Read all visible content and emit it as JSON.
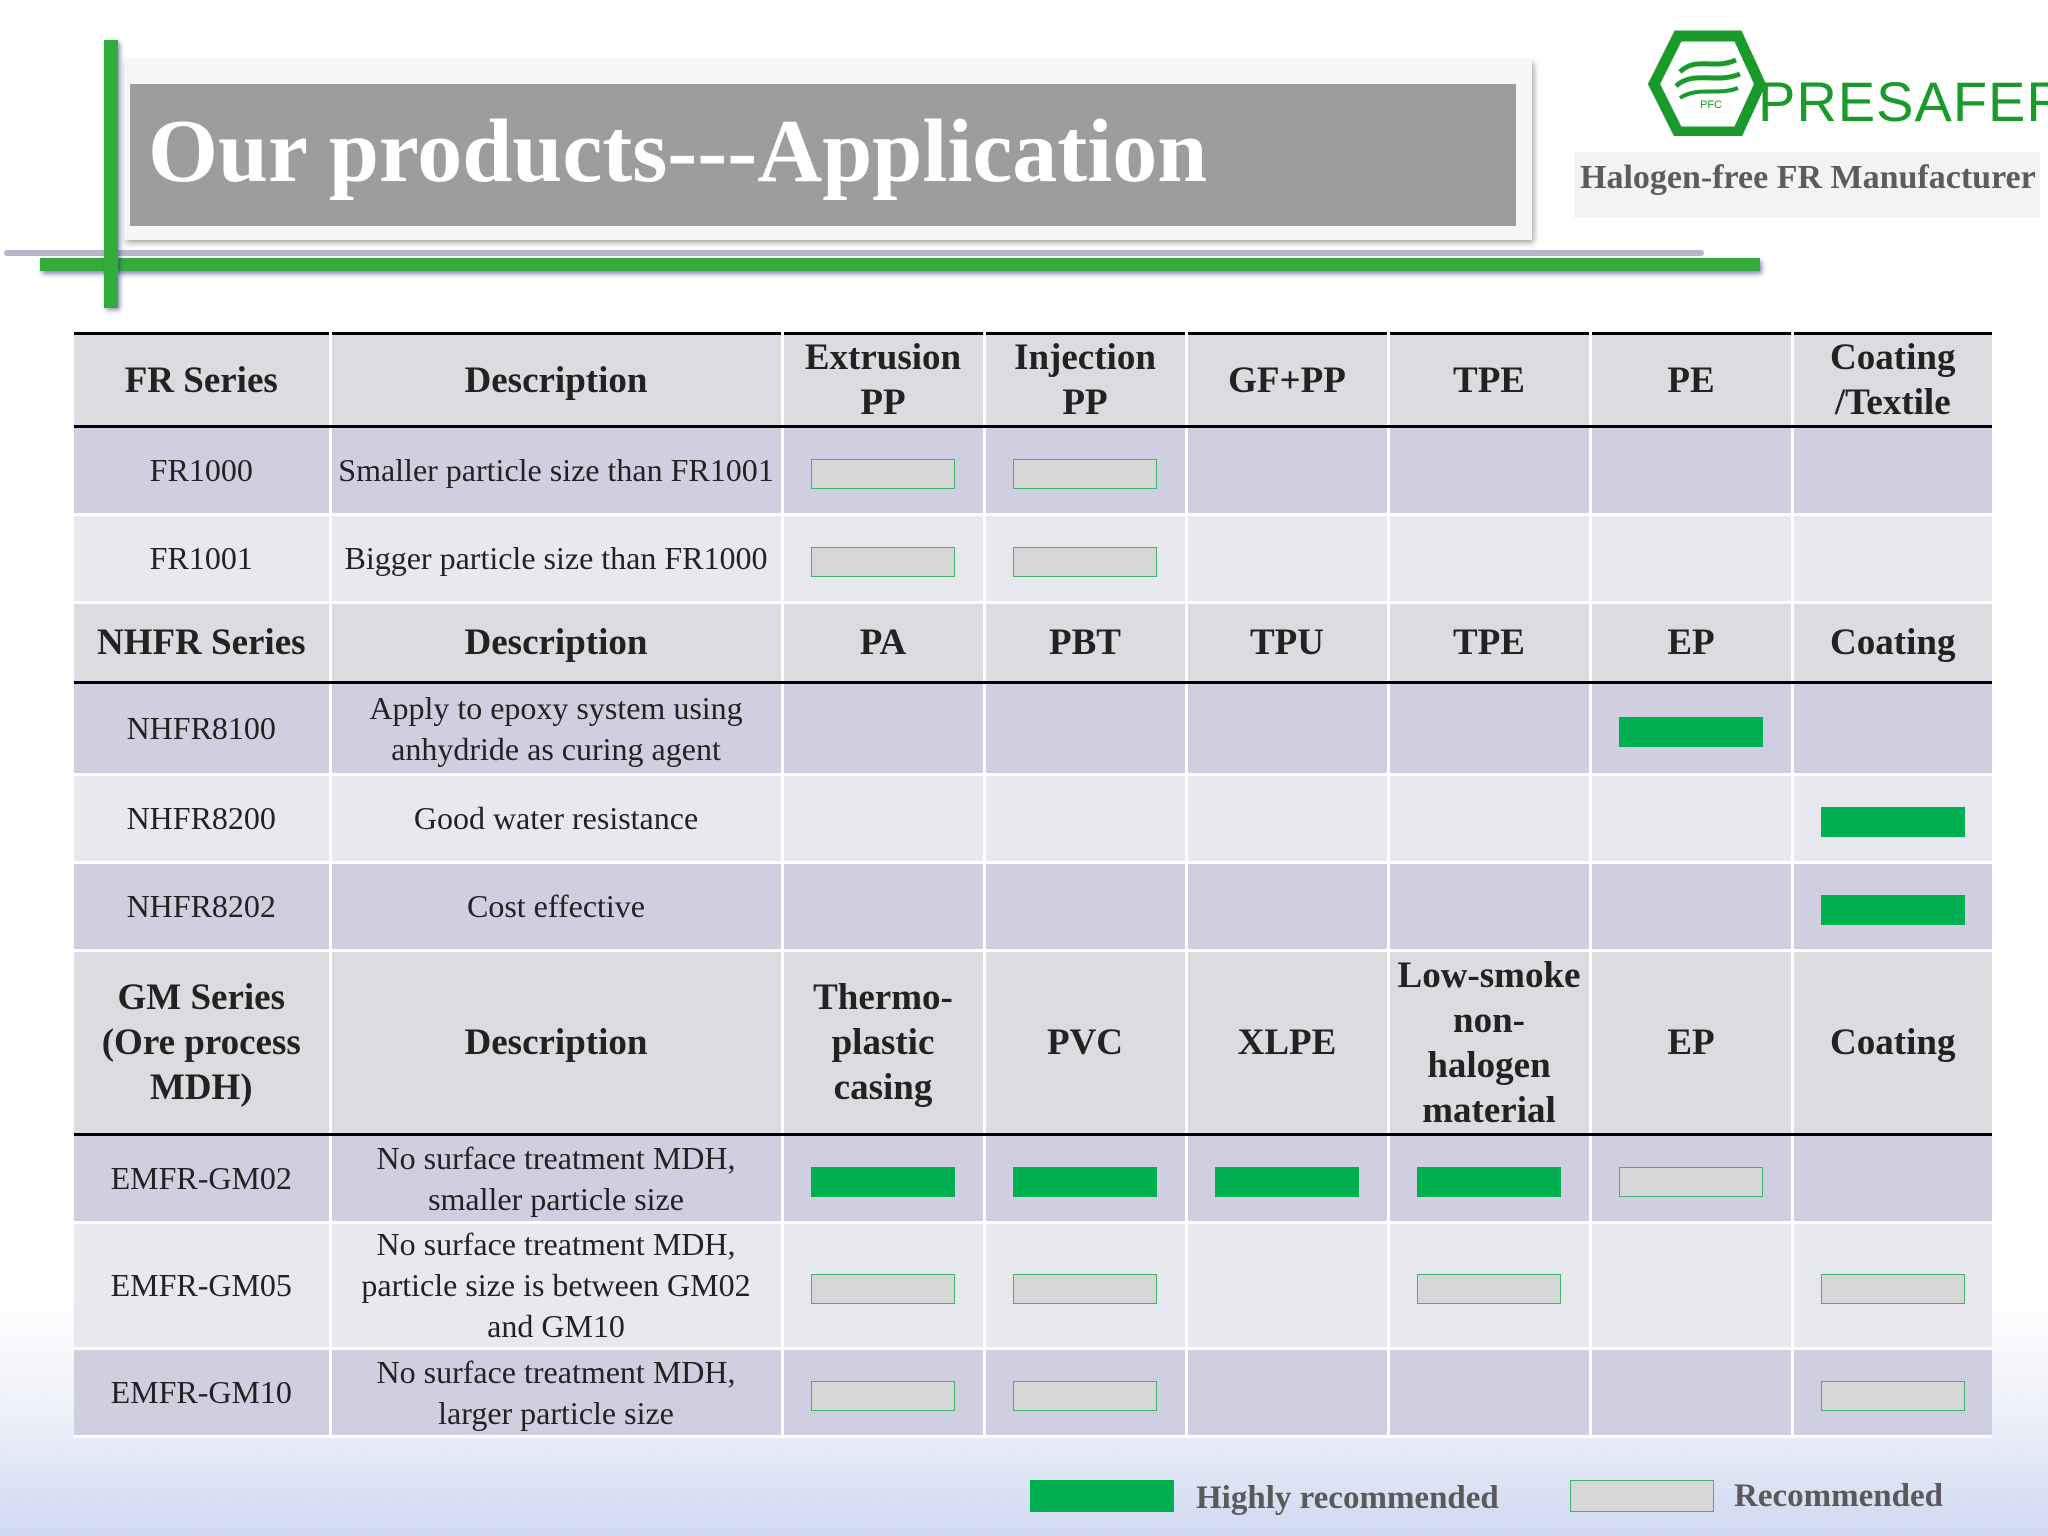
{
  "header": {
    "title": "Our products---Application",
    "logo_text": "PRESAFER",
    "logo_badge": "PFC",
    "tagline": "Halogen-free FR Manufacturer"
  },
  "colors": {
    "accent_green": "#33ad3a",
    "highly_recommended": "#00b050",
    "recommended": "#d7d7d7",
    "title_box": "#9d9d9d"
  },
  "sections": [
    {
      "headers": [
        "FR Series",
        "Description",
        "Extrusion PP",
        "Injection PP",
        "GF+PP",
        "TPE",
        "PE",
        "Coating /Textile"
      ],
      "rows": [
        {
          "name": "FR1000",
          "description": "Smaller particle size than FR1001",
          "marks": [
            "rec",
            "rec",
            "",
            "",
            "",
            ""
          ]
        },
        {
          "name": "FR1001",
          "description": "Bigger particle size than FR1000",
          "marks": [
            "rec",
            "rec",
            "",
            "",
            "",
            ""
          ]
        }
      ]
    },
    {
      "headers": [
        "NHFR Series",
        "Description",
        "PA",
        "PBT",
        "TPU",
        "TPE",
        "EP",
        "Coating"
      ],
      "rows": [
        {
          "name": "NHFR8100",
          "description": "Apply to epoxy system using anhydride as curing agent",
          "marks": [
            "",
            "",
            "",
            "",
            "high",
            ""
          ]
        },
        {
          "name": "NHFR8200",
          "description": "Good water resistance",
          "marks": [
            "",
            "",
            "",
            "",
            "",
            "high"
          ]
        },
        {
          "name": "NHFR8202",
          "description": "Cost effective",
          "marks": [
            "",
            "",
            "",
            "",
            "",
            "high"
          ]
        }
      ]
    },
    {
      "headers": [
        "GM Series (Ore process MDH)",
        "Description",
        "Thermo-plastic casing",
        "PVC",
        "XLPE",
        "Low-smoke non-halogen material",
        "EP",
        "Coating"
      ],
      "rows": [
        {
          "name": "EMFR-GM02",
          "description": "No surface treatment MDH, smaller particle size",
          "marks": [
            "high",
            "high",
            "high",
            "high",
            "rec",
            ""
          ]
        },
        {
          "name": "EMFR-GM05",
          "description": "No surface treatment MDH, particle size is between GM02 and GM10",
          "marks": [
            "rec",
            "rec",
            "",
            "rec",
            "",
            "rec"
          ]
        },
        {
          "name": "EMFR-GM10",
          "description": "No surface treatment MDH, larger particle size",
          "marks": [
            "rec",
            "rec",
            "",
            "",
            "",
            "rec"
          ]
        }
      ]
    }
  ],
  "legend": {
    "highly_recommended": "Highly recommended",
    "recommended": "Recommended"
  }
}
